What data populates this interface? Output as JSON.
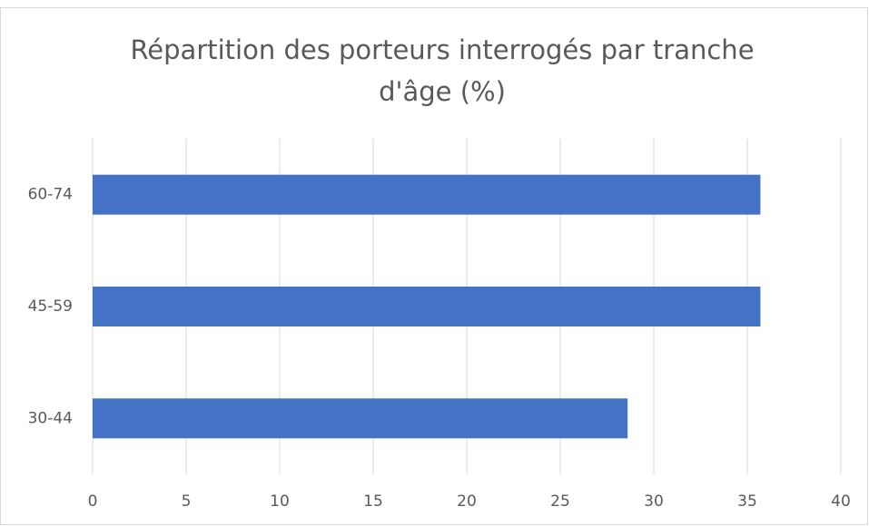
{
  "chart_data": {
    "type": "bar",
    "orientation": "horizontal",
    "title": "Répartition des porteurs interrogés par tranche d'âge (%)",
    "categories": [
      "30-44",
      "45-59",
      "60-74"
    ],
    "values": [
      28.6,
      35.7,
      35.7
    ],
    "color": "#4472c4",
    "xlim": [
      0,
      40
    ],
    "xticks": [
      0,
      5,
      10,
      15,
      20,
      25,
      30,
      35,
      40
    ],
    "grid": true
  }
}
